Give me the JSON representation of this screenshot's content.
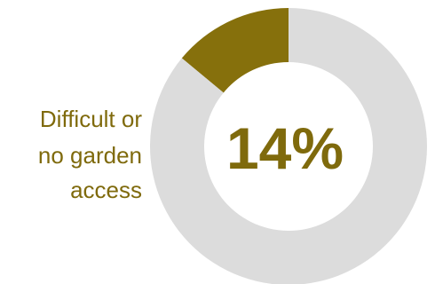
{
  "chart_data": {
    "type": "pie",
    "title": "",
    "center_label": "14%",
    "slices": [
      {
        "label": "Difficult or no garden access",
        "value": 14,
        "color": "#86700c",
        "label_lines": [
          "Difficult or",
          "no garden",
          "access"
        ]
      },
      {
        "label": "",
        "value": 86,
        "color": "#dcdcdc"
      }
    ],
    "donut": true
  }
}
